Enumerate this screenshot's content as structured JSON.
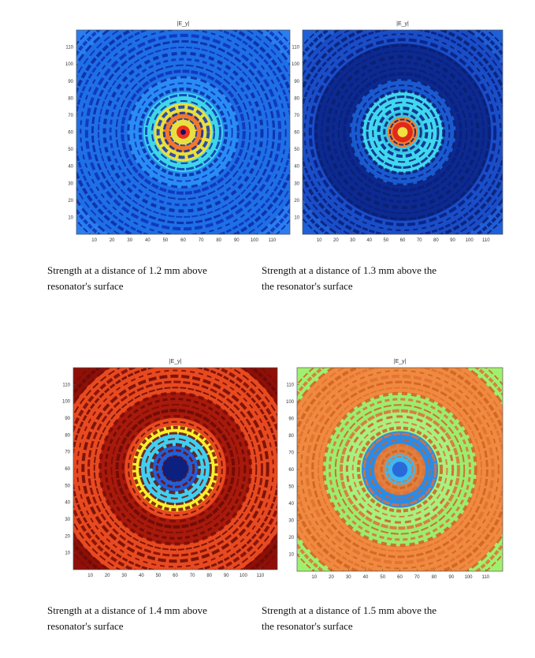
{
  "figures": [
    {
      "title": "|E_y|",
      "xticks": [
        "10",
        "20",
        "30",
        "40",
        "50",
        "60",
        "70",
        "80",
        "90",
        "100",
        "110"
      ],
      "yticks": [
        "10",
        "20",
        "30",
        "40",
        "50",
        "60",
        "70",
        "80",
        "90",
        "100",
        "110"
      ],
      "caption": [
        "Strength at a distance of 1.2 mm above",
        "resonator's surface"
      ]
    },
    {
      "title": "|E_y|",
      "xticks": [
        "10",
        "20",
        "30",
        "40",
        "50",
        "60",
        "70",
        "80",
        "90",
        "100",
        "110"
      ],
      "yticks": [
        "10",
        "20",
        "30",
        "40",
        "50",
        "60",
        "70",
        "80",
        "90",
        "100",
        "110"
      ],
      "caption": [
        "Strength at a distance of 1.3 mm above the",
        "the resonator's surface"
      ]
    },
    {
      "title": "|E_y|",
      "xticks": [
        "10",
        "20",
        "30",
        "40",
        "50",
        "60",
        "70",
        "80",
        "90",
        "100",
        "110"
      ],
      "yticks": [
        "10",
        "20",
        "30",
        "40",
        "50",
        "60",
        "70",
        "80",
        "90",
        "100",
        "110"
      ],
      "caption": [
        "Strength at a distance of 1.4 mm above",
        "resonator's surface"
      ]
    },
    {
      "title": "|E_y|",
      "xticks": [
        "10",
        "20",
        "30",
        "40",
        "50",
        "60",
        "70",
        "80",
        "90",
        "100",
        "110"
      ],
      "yticks": [
        "10",
        "20",
        "30",
        "40",
        "50",
        "60",
        "70",
        "80",
        "90",
        "100",
        "110"
      ],
      "caption": [
        "Strength at a distance of 1.5 mm above the",
        "the resonator's surface"
      ]
    }
  ]
}
